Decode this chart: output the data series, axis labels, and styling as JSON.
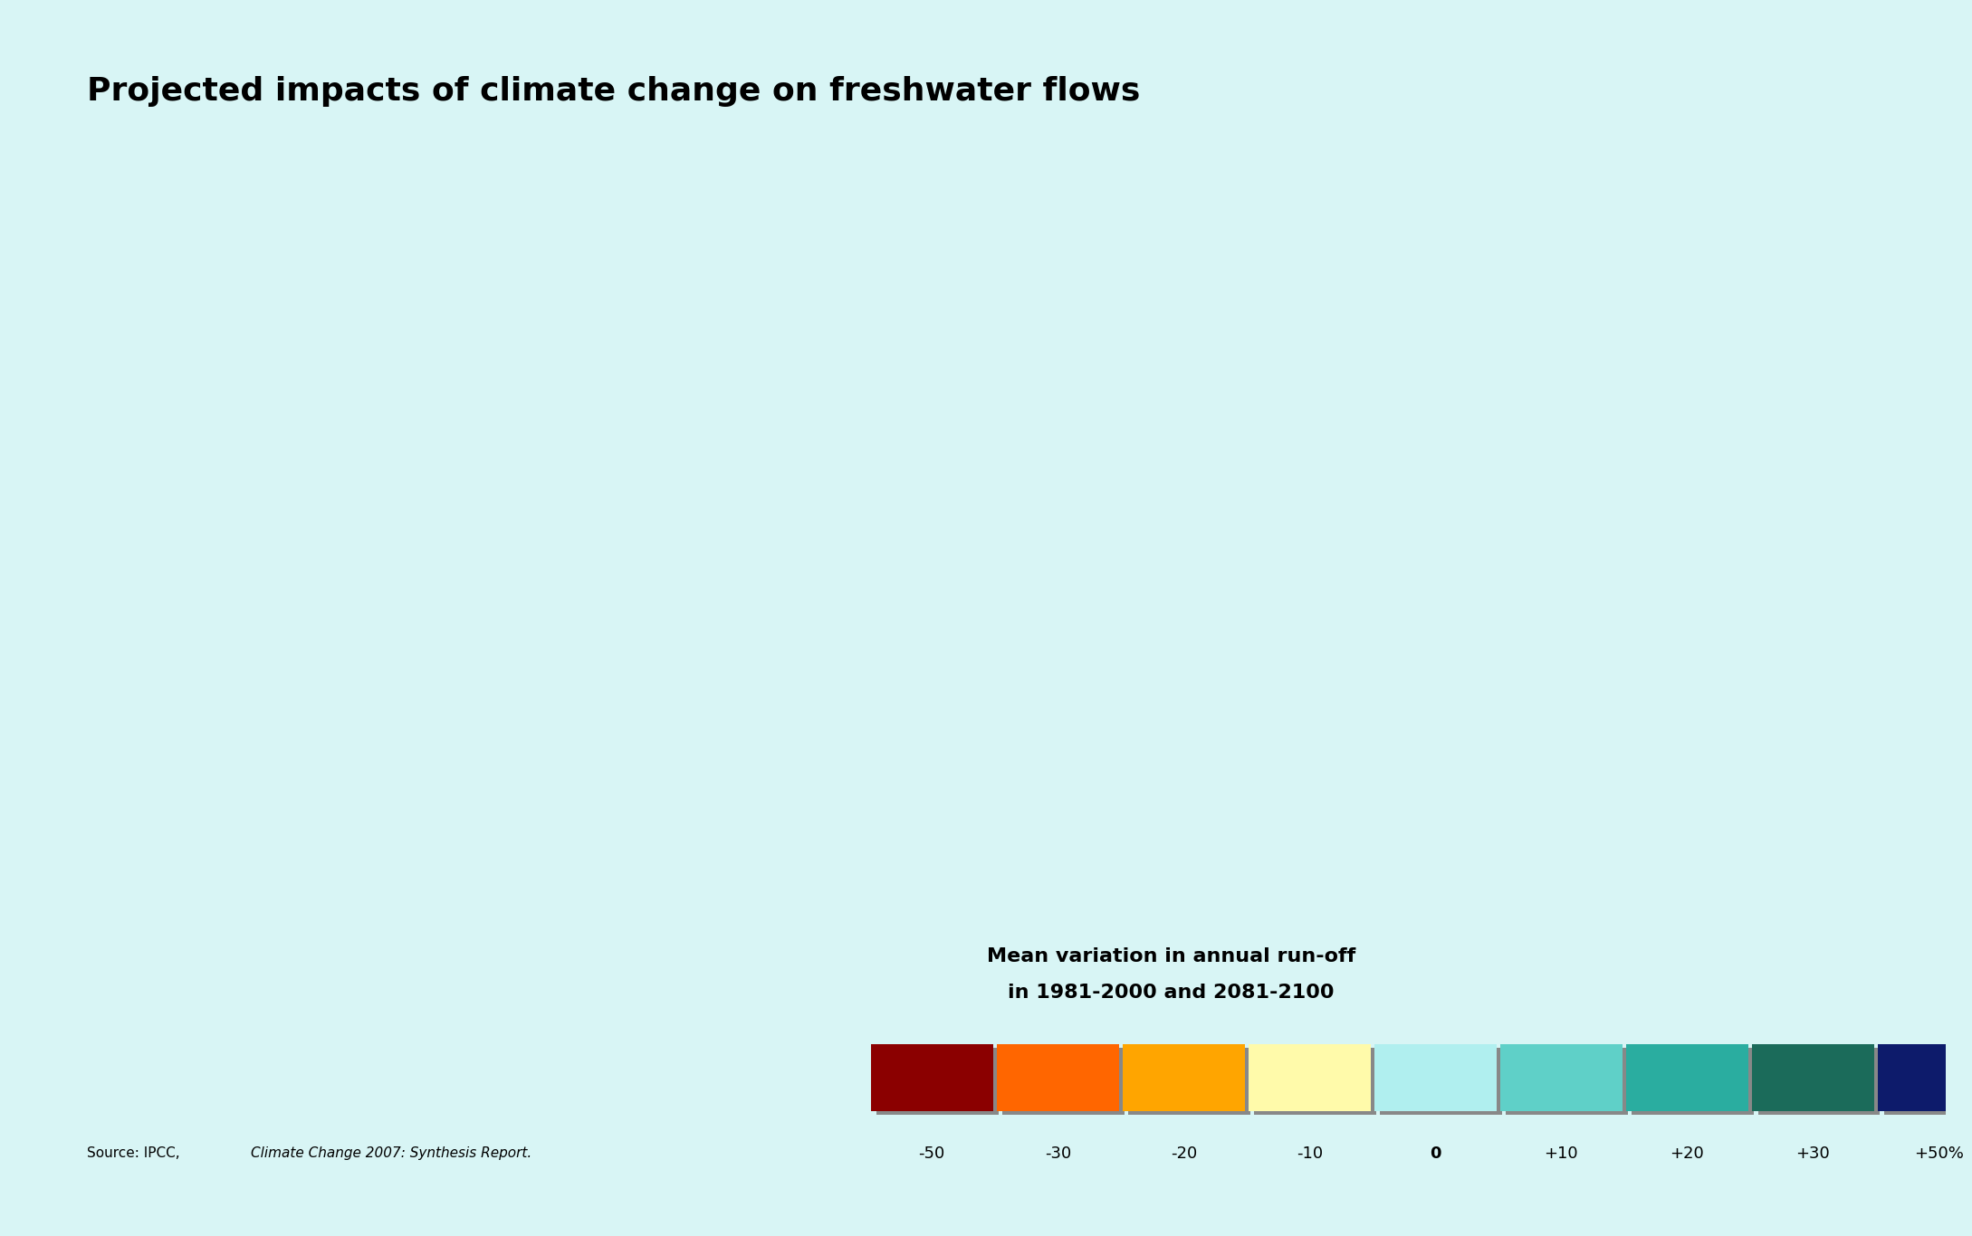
{
  "title": "Projected impacts of climate change on freshwater flows",
  "legend_title_line1": "Mean variation in annual run-off",
  "legend_title_line2": "in 1981-2000 and 2081-2100",
  "source_text": "Source: IPCC, ",
  "source_italic": "Climate Change 2007: Synthesis Report.",
  "colorbar_labels": [
    "-50",
    "-30",
    "-20",
    "-10",
    "0",
    "+10",
    "+20",
    "+30",
    "+50%"
  ],
  "colorbar_colors": [
    "#8B0000",
    "#FF6600",
    "#FFA500",
    "#FFFAAA",
    "#B0EFEF",
    "#5FD0C8",
    "#2AADA0",
    "#1B6B5A",
    "#0D1B6B"
  ],
  "background_color": "#D8F5F5",
  "map_ocean_color": "#CCEEFF",
  "title_fontsize": 26,
  "title_color": "#000000",
  "bg_top_color": "#CCEEFF"
}
